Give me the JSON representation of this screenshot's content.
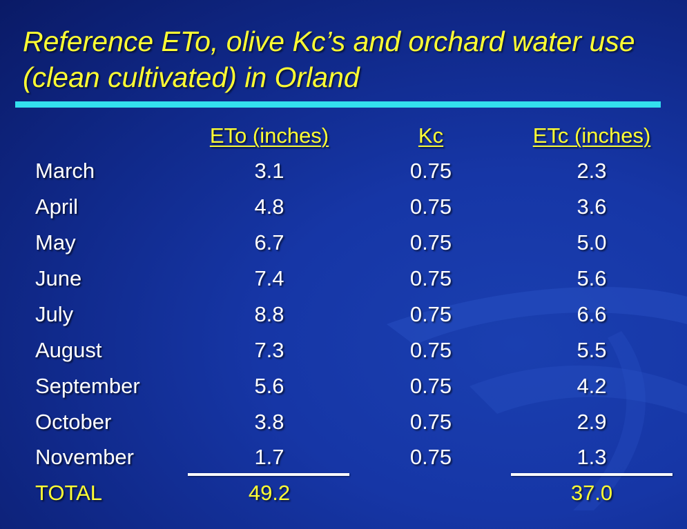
{
  "title": "Reference ETo, olive Kc’s and orchard water use (clean cultivated) in Orland",
  "table": {
    "headers": {
      "eto": "ETo (inches)",
      "kc": "Kc",
      "etc": "ETc (inches)"
    },
    "rows": [
      {
        "month": "March",
        "eto": "3.1",
        "kc": "0.75",
        "etc": "2.3"
      },
      {
        "month": "April",
        "eto": "4.8",
        "kc": "0.75",
        "etc": "3.6"
      },
      {
        "month": "May",
        "eto": "6.7",
        "kc": "0.75",
        "etc": "5.0"
      },
      {
        "month": "June",
        "eto": "7.4",
        "kc": "0.75",
        "etc": "5.6"
      },
      {
        "month": "July",
        "eto": "8.8",
        "kc": "0.75",
        "etc": "6.6"
      },
      {
        "month": "August",
        "eto": "7.3",
        "kc": "0.75",
        "etc": "5.5"
      },
      {
        "month": "September",
        "eto": "5.6",
        "kc": "0.75",
        "etc": "4.2"
      },
      {
        "month": "October",
        "eto": "3.8",
        "kc": "0.75",
        "etc": "2.9"
      },
      {
        "month": "November",
        "eto": "1.7",
        "kc": "0.75",
        "etc": "1.3"
      }
    ],
    "total": {
      "label": "TOTAL",
      "eto": "49.2",
      "etc": "37.0"
    }
  },
  "colors": {
    "background": "#1636a6",
    "title": "#ffff33",
    "accent_bar": "#33e0ee",
    "text": "#ffffff"
  }
}
